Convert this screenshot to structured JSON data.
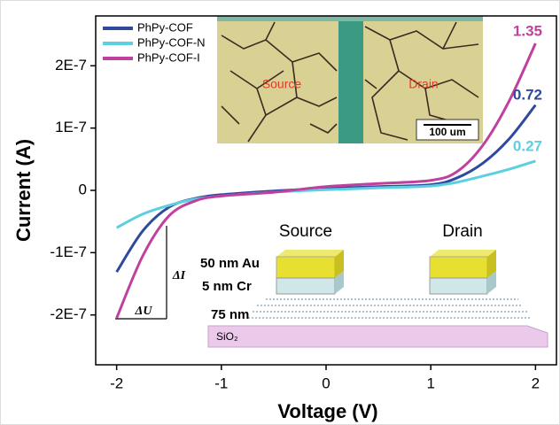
{
  "chart_data": {
    "type": "line",
    "x_label": "Voltage (V)",
    "y_label": "Current (A)",
    "x": [
      -2,
      -1.75,
      -1.5,
      -1.25,
      -1,
      -0.5,
      0,
      0.5,
      1,
      1.25,
      1.5,
      1.75,
      2
    ],
    "series": [
      {
        "name": "PhPy-COF",
        "color": "#2e4a9e",
        "values": [
          -1.31e-07,
          -6.5e-08,
          -2.7e-08,
          -1.3e-08,
          -7e-09,
          -1e-09,
          3e-09,
          6e-09,
          9e-09,
          2e-08,
          4.4e-08,
          8.3e-08,
          1.37e-07
        ]
      },
      {
        "name": "PhPy-COF-N",
        "color": "#5ccfe0",
        "values": [
          -6e-08,
          -3.8e-08,
          -2.4e-08,
          -1.4e-08,
          -9e-09,
          -3e-09,
          1e-09,
          4e-09,
          7e-09,
          1.3e-08,
          2.3e-08,
          3.4e-08,
          4.7e-08
        ]
      },
      {
        "name": "PhPy-COF-I",
        "color": "#c040a0",
        "values": [
          -2.05e-07,
          -1.05e-07,
          -4.1e-08,
          -1.7e-08,
          -9e-09,
          -3e-09,
          6e-09,
          1.1e-08,
          1.6e-08,
          3e-08,
          7.3e-08,
          1.44e-07,
          2.36e-07
        ]
      }
    ],
    "xlim": [
      -2.2,
      2.2
    ],
    "xticks": [
      -2,
      -1,
      0,
      1,
      2
    ],
    "ylim": [
      -2.8e-07,
      2.8e-07
    ],
    "yticks": [
      {
        "value": -2e-07,
        "label": "-2E-7"
      },
      {
        "value": -1e-07,
        "label": "-1E-7"
      },
      0,
      {
        "value": 1e-07,
        "label": "1E-7"
      },
      {
        "value": 2e-07,
        "label": "2E-7"
      }
    ],
    "legend": "top-left",
    "end_labels": [
      {
        "text": "0.72",
        "color": "#2e4a9e"
      },
      {
        "text": "0.27",
        "color": "#5ccfe0"
      },
      {
        "text": "1.35",
        "color": "#c040a0"
      }
    ],
    "slope_labels": [
      "ΔI",
      "ΔU"
    ],
    "inset_micrograph": {
      "source": "Source",
      "drain": "Drain",
      "scale": "100 um"
    },
    "inset_device": {
      "source": "Source",
      "drain": "Drain",
      "layers": [
        "50 nm Au",
        "5 nm Cr",
        "75 nm",
        "SiO₂"
      ]
    }
  }
}
